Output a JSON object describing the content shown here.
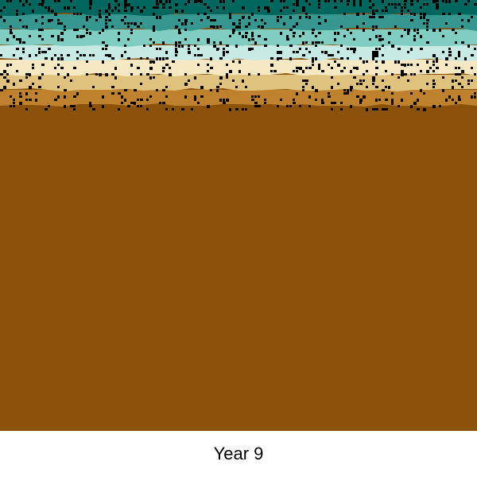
{
  "caption": "Year 9",
  "layers": [
    {
      "name": "top-dark-teal",
      "color": "#01665e"
    },
    {
      "name": "teal",
      "color": "#35978f"
    },
    {
      "name": "light-teal",
      "color": "#80cdc1"
    },
    {
      "name": "pale-teal",
      "color": "#c7eae5"
    },
    {
      "name": "cream",
      "color": "#f6e8c3"
    },
    {
      "name": "tan",
      "color": "#dfc27d"
    },
    {
      "name": "ochre",
      "color": "#bf812d"
    },
    {
      "name": "brown-base",
      "color": "#8c510a"
    }
  ],
  "speckle_color": "#000000"
}
